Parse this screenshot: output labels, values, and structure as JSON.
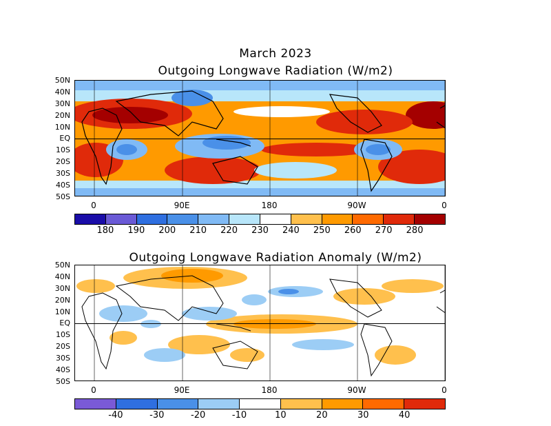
{
  "header": {
    "date_title": "March 2023"
  },
  "panel_olr": {
    "title": "Outgoing Longwave Radiation (W/m2)",
    "lat_labels": [
      "50N",
      "40N",
      "30N",
      "20N",
      "10N",
      "EQ",
      "10S",
      "20S",
      "30S",
      "40S",
      "50S"
    ],
    "lon_labels": [
      "0",
      "90E",
      "180",
      "90W",
      "0"
    ],
    "colorbar": {
      "colors": [
        "#1a0da8",
        "#6a5ad6",
        "#2f6fe0",
        "#4a90e8",
        "#80baf5",
        "#b8e6fa",
        "#ffffff",
        "#ffc04d",
        "#ff9a00",
        "#ff6a00",
        "#e02a0a",
        "#a40000"
      ],
      "labels": [
        "180",
        "190",
        "200",
        "210",
        "220",
        "230",
        "240",
        "250",
        "260",
        "270",
        "280"
      ]
    }
  },
  "panel_anom": {
    "title": "Outgoing Longwave Radiation Anomaly (W/m2)",
    "lat_labels": [
      "50N",
      "40N",
      "30N",
      "20N",
      "10N",
      "EQ",
      "10S",
      "20S",
      "30S",
      "40S",
      "50S"
    ],
    "lon_labels": [
      "0",
      "90E",
      "180",
      "90W",
      "0"
    ],
    "colorbar": {
      "colors": [
        "#7a5ad6",
        "#2f6fe0",
        "#4a90e8",
        "#9ccdf5",
        "#ffffff",
        "#ffc04d",
        "#ff9a00",
        "#ff6a00",
        "#e02a0a"
      ],
      "labels": [
        "-40",
        "-30",
        "-20",
        "-10",
        "10",
        "20",
        "30",
        "40"
      ]
    }
  }
}
